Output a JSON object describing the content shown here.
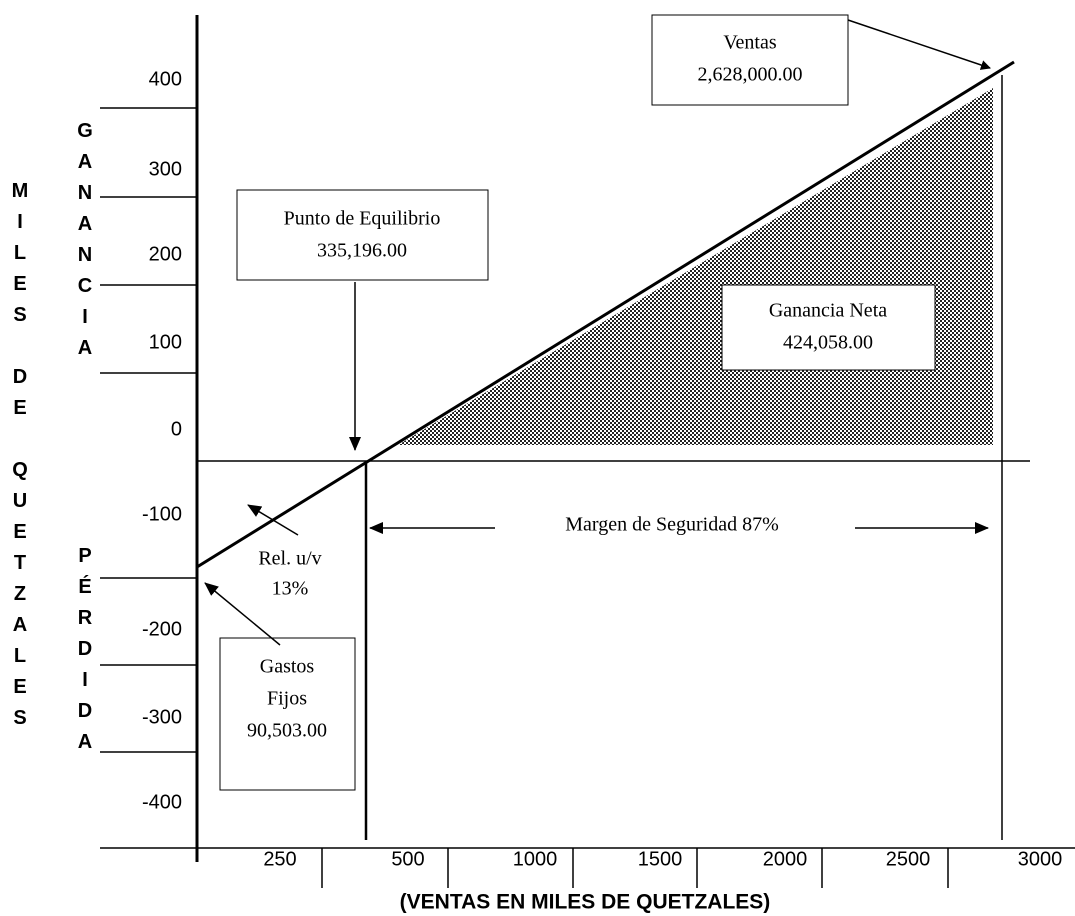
{
  "y_axis": {
    "ticks": [
      "400",
      "300",
      "200",
      "100",
      "0",
      "-100",
      "-200",
      "-300",
      "-400"
    ],
    "title": "MILES DE QUETZALES",
    "upper_label": "GANANCIA",
    "lower_label": "PÉRDIDA"
  },
  "x_axis": {
    "ticks": [
      "250",
      "500",
      "1000",
      "1500",
      "2000",
      "2500",
      "3000"
    ],
    "title": "(VENTAS EN MILES DE QUETZALES)"
  },
  "annotations": {
    "ventas": [
      "Ventas",
      "2,628,000.00"
    ],
    "punto_equilibrio": [
      "Punto de Equilibrio",
      "335,196.00"
    ],
    "ganancia_neta": [
      "Ganancia Neta",
      "424,058.00"
    ],
    "margen_seguridad": [
      "Margen de Seguridad 87%"
    ],
    "rel_uv": [
      "Rel. u/v",
      "13%"
    ],
    "gastos_fijos": [
      "Gastos",
      "Fijos",
      "90,503.00"
    ]
  }
}
